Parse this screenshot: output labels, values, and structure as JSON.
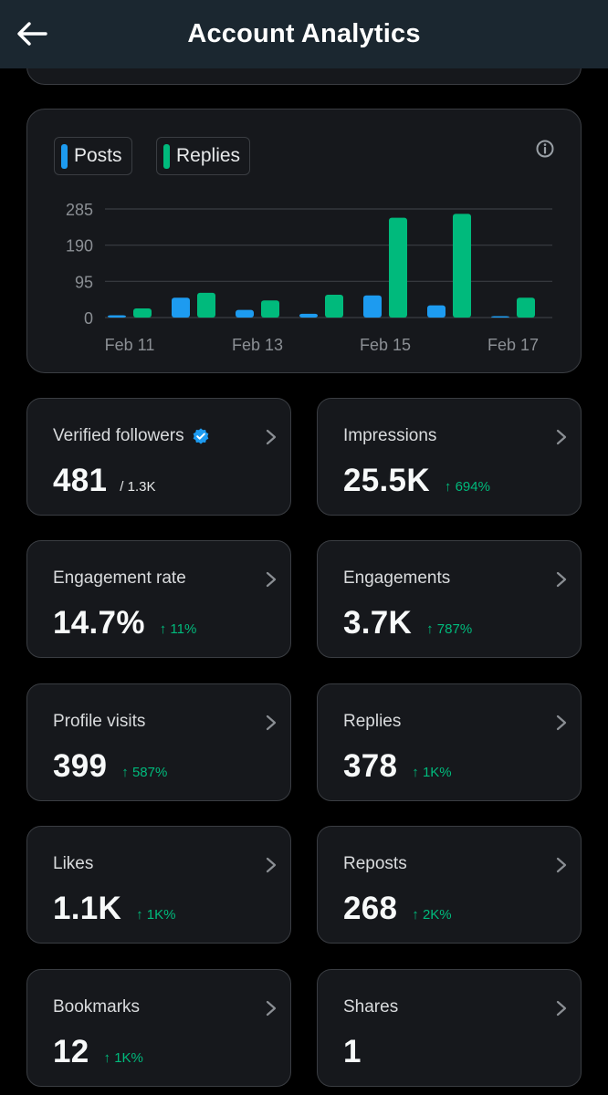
{
  "header": {
    "title": "Account Analytics",
    "back_icon": "arrow-left-icon"
  },
  "colors": {
    "posts": "#1d9bf0",
    "replies": "#00ba7c",
    "positive_change": "#00ba7c",
    "verified": "#1d9bf0"
  },
  "chart_data": {
    "type": "bar",
    "legend": [
      "Posts",
      "Replies"
    ],
    "categories": [
      "Feb 11",
      "Feb 12",
      "Feb 13",
      "Feb 14",
      "Feb 15",
      "Feb 16",
      "Feb 17"
    ],
    "x_tick_labels": [
      "Feb 11",
      "Feb 13",
      "Feb 15",
      "Feb 17"
    ],
    "series": [
      {
        "name": "Posts",
        "values": [
          6,
          52,
          20,
          10,
          58,
          32,
          1
        ]
      },
      {
        "name": "Replies",
        "values": [
          24,
          65,
          45,
          60,
          262,
          272,
          52
        ]
      }
    ],
    "y_ticks": [
      "285",
      "190",
      "95",
      "0"
    ],
    "ylim": [
      0,
      285
    ],
    "grid": true
  },
  "metrics": [
    {
      "label": "Verified followers",
      "value": "481",
      "sub": "/ 1.3K",
      "verified": true
    },
    {
      "label": "Impressions",
      "value": "25.5K",
      "change": "↑ 694%"
    },
    {
      "label": "Engagement rate",
      "value": "14.7%",
      "change": "↑ 11%"
    },
    {
      "label": "Engagements",
      "value": "3.7K",
      "change": "↑ 787%"
    },
    {
      "label": "Profile visits",
      "value": "399",
      "change": "↑ 587%"
    },
    {
      "label": "Replies",
      "value": "378",
      "change": "↑ 1K%"
    },
    {
      "label": "Likes",
      "value": "1.1K",
      "change": "↑ 1K%"
    },
    {
      "label": "Reposts",
      "value": "268",
      "change": "↑ 2K%"
    },
    {
      "label": "Bookmarks",
      "value": "12",
      "change": "↑ 1K%"
    },
    {
      "label": "Shares",
      "value": "1"
    }
  ]
}
